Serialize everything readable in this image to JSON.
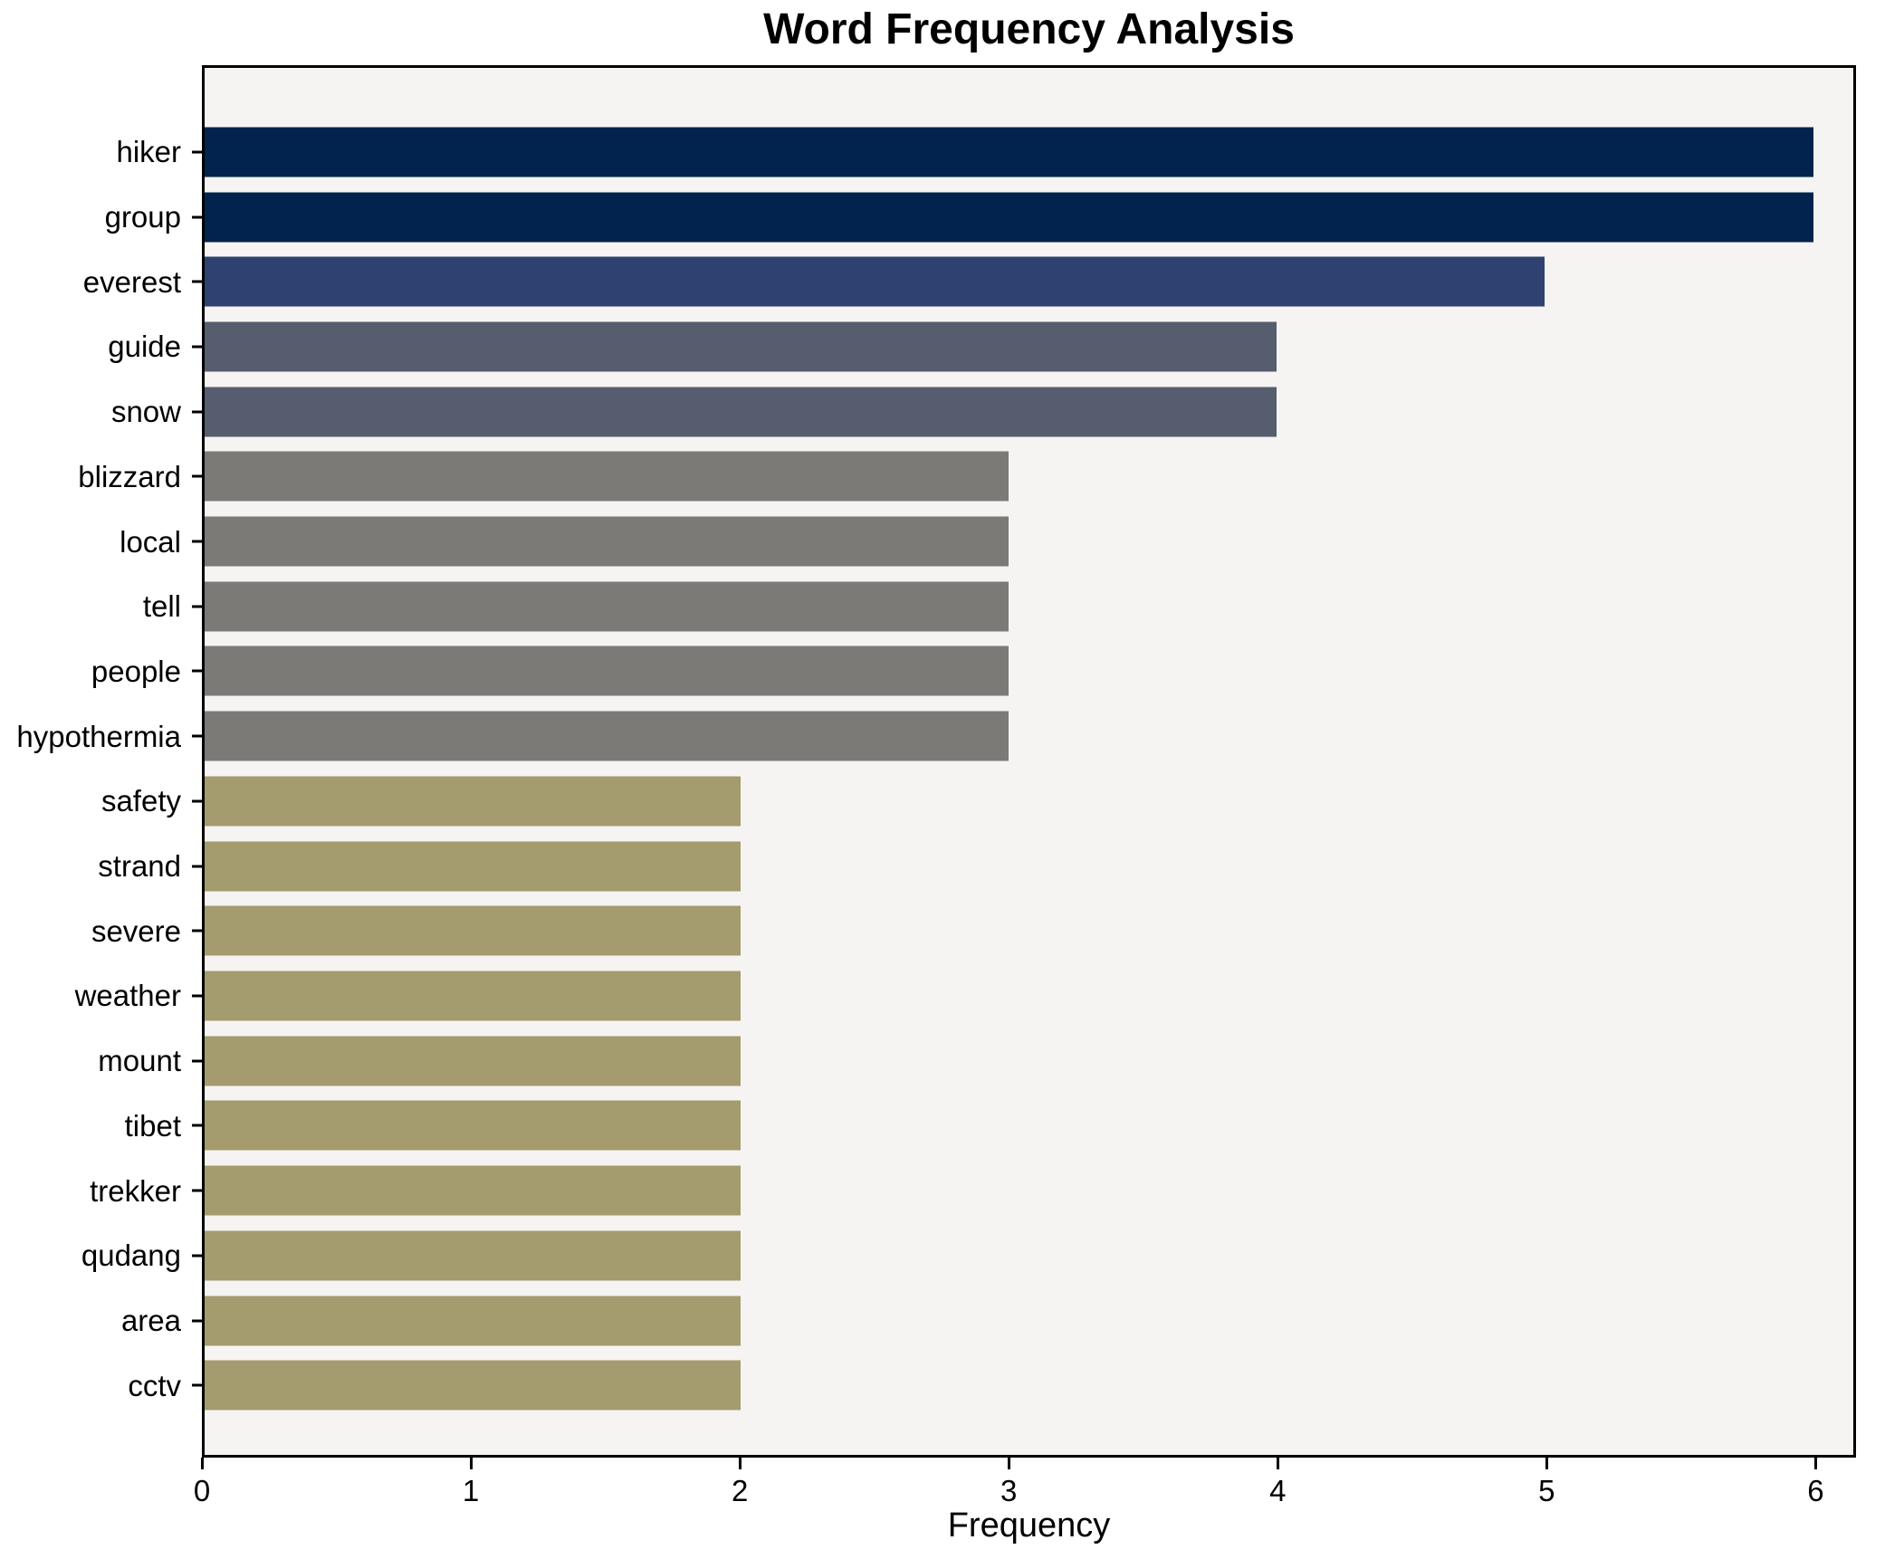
{
  "chart_data": {
    "type": "bar",
    "orientation": "horizontal",
    "title": "Word Frequency Analysis",
    "xlabel": "Frequency",
    "ylabel": "",
    "categories": [
      "hiker",
      "group",
      "everest",
      "guide",
      "snow",
      "blizzard",
      "local",
      "tell",
      "people",
      "hypothermia",
      "safety",
      "strand",
      "severe",
      "weather",
      "mount",
      "tibet",
      "trekker",
      "qudang",
      "area",
      "cctv"
    ],
    "values": [
      6,
      6,
      5,
      4,
      4,
      3,
      3,
      3,
      3,
      3,
      2,
      2,
      2,
      2,
      2,
      2,
      2,
      2,
      2,
      2
    ],
    "bar_colors": [
      "#02234d",
      "#02234d",
      "#2e4170",
      "#565d6e",
      "#565d6e",
      "#7b7a76",
      "#7b7a76",
      "#7b7a76",
      "#7b7a76",
      "#7b7a76",
      "#a49b6e",
      "#a49b6e",
      "#a49b6e",
      "#a49b6e",
      "#a49b6e",
      "#a49b6e",
      "#a49b6e",
      "#a49b6e",
      "#a49b6e",
      "#a49b6e"
    ],
    "xlim": [
      0,
      6.15
    ],
    "x_ticks": [
      0,
      1,
      2,
      3,
      4,
      5,
      6
    ],
    "grid": false,
    "legend": "none"
  },
  "colors": {
    "figure_background": "#ffffff",
    "plot_background": "#f5f4f2",
    "spine": "#000000",
    "text": "#000000",
    "freq_6": "#02234d",
    "freq_5": "#2e4170",
    "freq_4": "#565d6e",
    "freq_3": "#7b7a76",
    "freq_2": "#a49b6e"
  }
}
